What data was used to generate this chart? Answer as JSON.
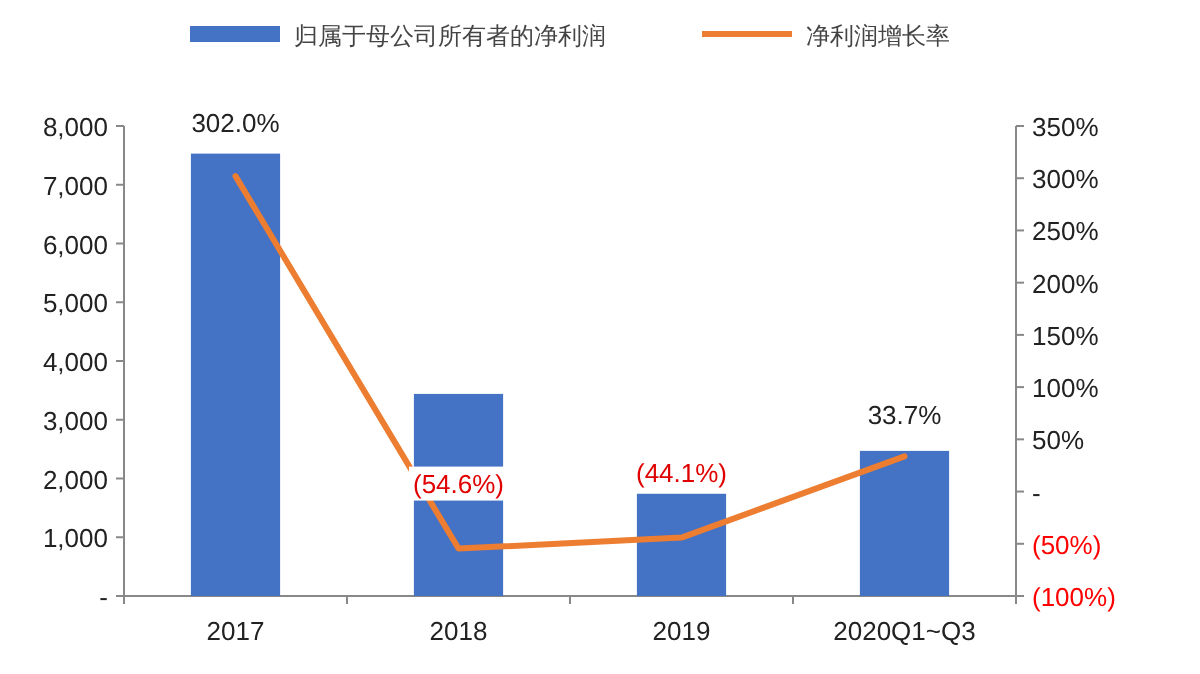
{
  "chart_data": {
    "type": "bar",
    "legend": "top",
    "categories": [
      "2017",
      "2018",
      "2019",
      "2020Q1~Q3"
    ],
    "series": [
      {
        "name": "归属于母公司所有者的净利润",
        "color": "#4472c4",
        "values": [
          7530,
          3440,
          1740,
          2470
        ]
      },
      {
        "name": "净利润增长率",
        "type": "line",
        "axis": "y2",
        "color": "#ed7d31",
        "values": [
          302.0,
          -54.6,
          -44.1,
          33.7
        ],
        "value_labels": [
          "302.0%",
          "(54.6%)",
          "(44.1%)",
          "33.7%"
        ]
      }
    ],
    "ylim": [
      0,
      8000
    ],
    "yticks": [
      {
        "value": 0,
        "label": "-"
      },
      {
        "value": 1000,
        "label": "1,000"
      },
      {
        "value": 2000,
        "label": "2,000"
      },
      {
        "value": 3000,
        "label": "3,000"
      },
      {
        "value": 4000,
        "label": "4,000"
      },
      {
        "value": 5000,
        "label": "5,000"
      },
      {
        "value": 6000,
        "label": "6,000"
      },
      {
        "value": 7000,
        "label": "7,000"
      },
      {
        "value": 8000,
        "label": "8,000"
      }
    ],
    "y2lim": [
      -100,
      350
    ],
    "y2ticks": [
      {
        "value": -100,
        "label": "(100%)"
      },
      {
        "value": -50,
        "label": "(50%)"
      },
      {
        "value": 0,
        "label": "-"
      },
      {
        "value": 50,
        "label": "50%"
      },
      {
        "value": 100,
        "label": "100%"
      },
      {
        "value": 150,
        "label": "150%"
      },
      {
        "value": 200,
        "label": "200%"
      },
      {
        "value": 250,
        "label": "250%"
      },
      {
        "value": 300,
        "label": "300%"
      },
      {
        "value": 350,
        "label": "350%"
      }
    ]
  }
}
